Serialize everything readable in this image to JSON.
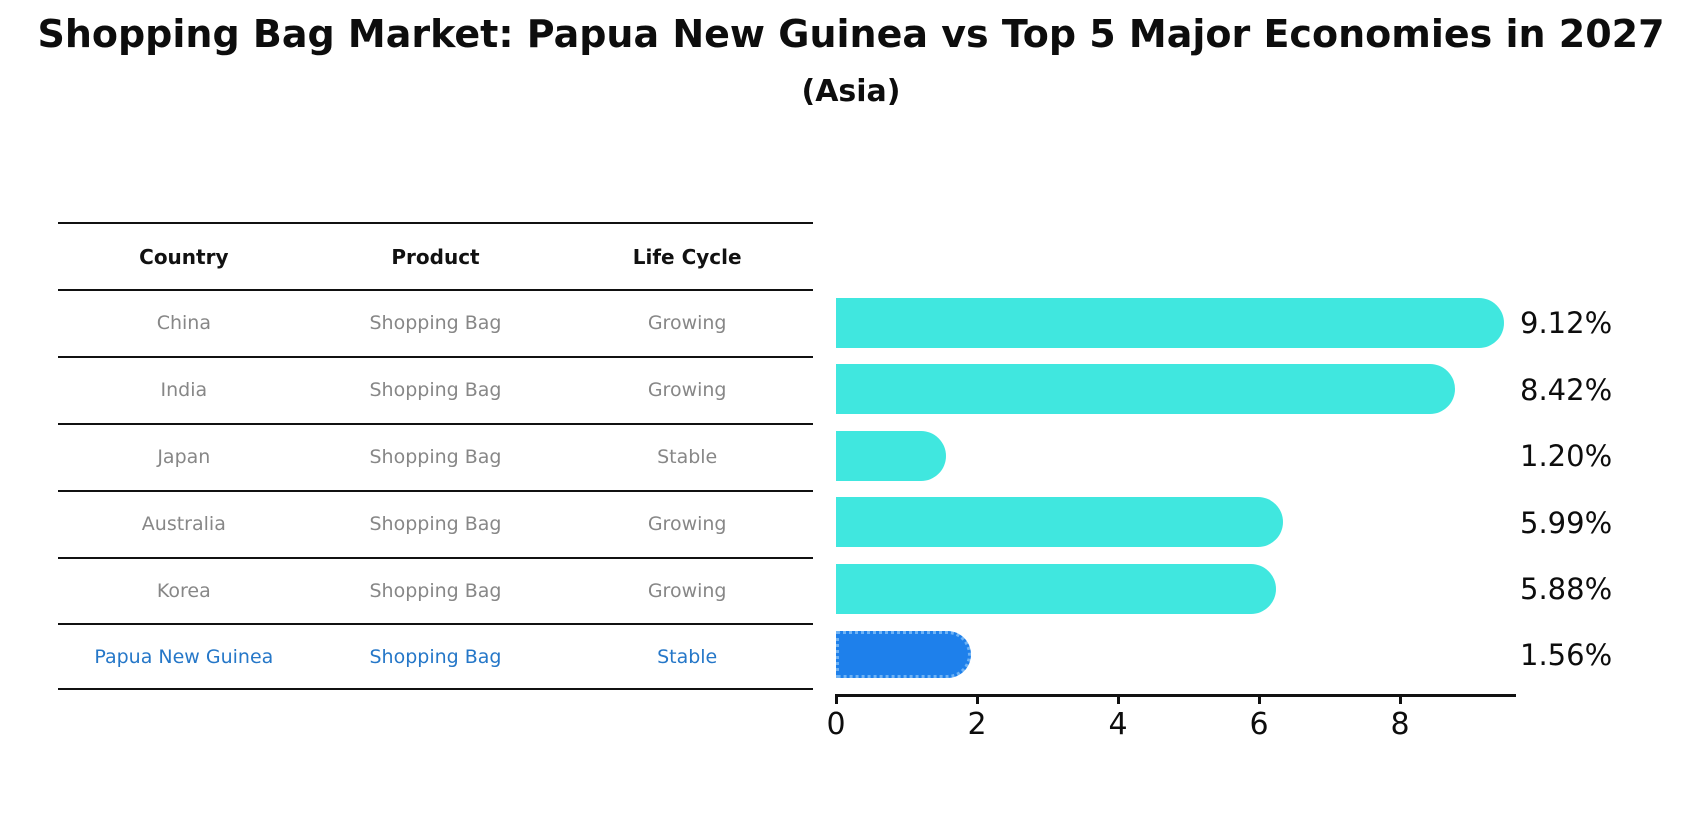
{
  "title": "Shopping Bag Market: Papua New Guinea vs Top 5 Major Economies in 2027",
  "subtitle": "(Asia)",
  "table": {
    "headers": [
      "Country",
      "Product",
      "Life Cycle"
    ],
    "rows": [
      {
        "country": "China",
        "product": "Shopping Bag",
        "life_cycle": "Growing"
      },
      {
        "country": "India",
        "product": "Shopping Bag",
        "life_cycle": "Growing"
      },
      {
        "country": "Japan",
        "product": "Shopping Bag",
        "life_cycle": "Stable"
      },
      {
        "country": "Australia",
        "product": "Shopping Bag",
        "life_cycle": "Growing"
      },
      {
        "country": "Korea",
        "product": "Shopping Bag",
        "life_cycle": "Growing"
      },
      {
        "country": "Papua New Guinea",
        "product": "Shopping Bag",
        "life_cycle": "Stable"
      }
    ],
    "highlight_row": "Papua New Guinea"
  },
  "chart_data": {
    "type": "bar",
    "orientation": "horizontal",
    "title": "Shopping Bag Market: Papua New Guinea vs Top 5 Major Economies in 2027",
    "subtitle": "(Asia)",
    "categories": [
      "China",
      "India",
      "Japan",
      "Australia",
      "Korea",
      "Papua New Guinea"
    ],
    "values": [
      9.12,
      8.42,
      1.2,
      5.99,
      5.88,
      1.56
    ],
    "labels": [
      "9.12%",
      "8.42%",
      "1.20%",
      "5.99%",
      "5.88%",
      "1.56%"
    ],
    "x_ticks": [
      0,
      2,
      4,
      6,
      8
    ],
    "x_tick_labels": [
      "0",
      "2",
      "4",
      "6",
      "8"
    ],
    "xlim": [
      0,
      9.6
    ],
    "grid": false,
    "legend": false,
    "highlight_index": 5,
    "bar_color": "#40E7DF",
    "highlight_color": "#1E80EB",
    "xlabel": "",
    "ylabel": ""
  },
  "colors": {
    "bar_cyan": "#40E7DF",
    "bar_blue": "#1E80EB",
    "blue_edge": "#6FB3F5",
    "gray_text": "#878787",
    "highlight_text": "#2577C8",
    "axis_black": "#111111"
  }
}
